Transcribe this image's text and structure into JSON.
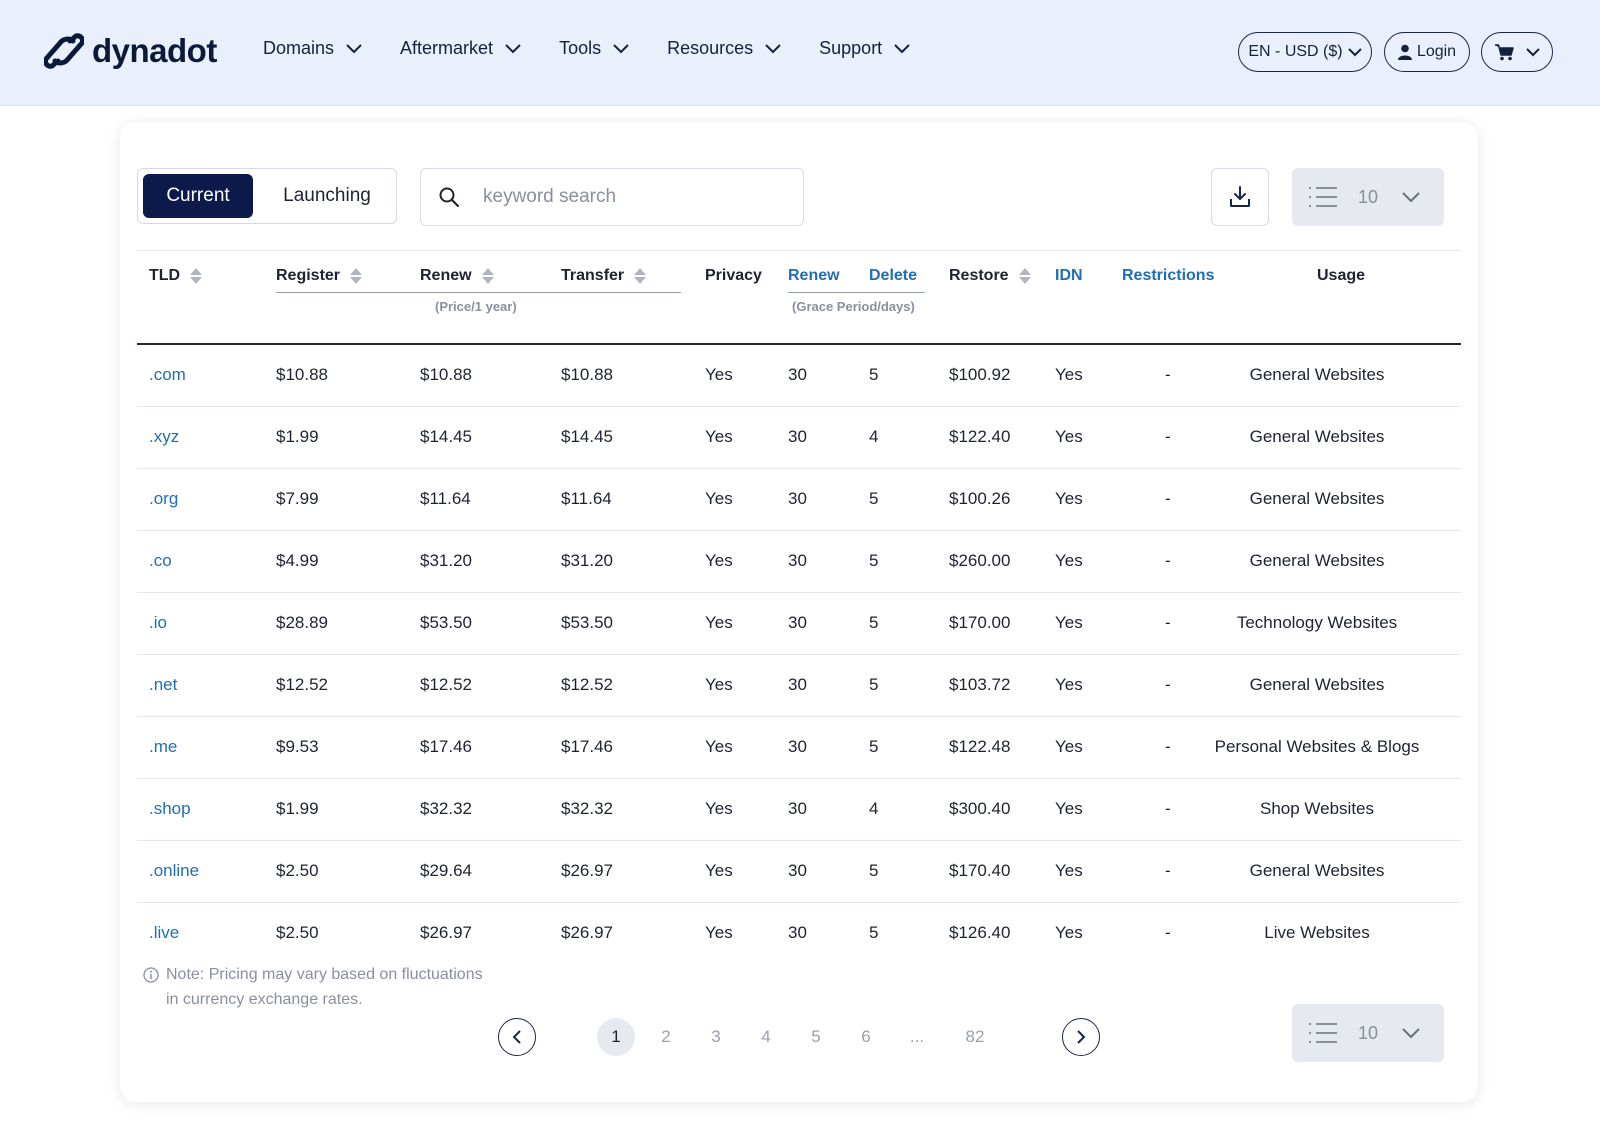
{
  "brand": {
    "name": "dynadot"
  },
  "nav": [
    {
      "label": "Domains"
    },
    {
      "label": "Aftermarket"
    },
    {
      "label": "Tools"
    },
    {
      "label": "Resources"
    },
    {
      "label": "Support"
    }
  ],
  "header_actions": {
    "language_currency": "EN - USD ($)",
    "login": "Login"
  },
  "tabs": {
    "current": "Current",
    "launching": "Launching",
    "active": "current"
  },
  "search": {
    "placeholder": "keyword search",
    "value": ""
  },
  "per_page": {
    "value": "10"
  },
  "table": {
    "columns": {
      "tld": "TLD",
      "register": "Register",
      "renew": "Renew",
      "transfer": "Transfer",
      "price_note": "(Price/1 year)",
      "privacy": "Privacy",
      "grace_renew": "Renew",
      "grace_delete": "Delete",
      "grace_note": "(Grace Period/days)",
      "restore": "Restore",
      "idn": "IDN",
      "restrictions": "Restrictions",
      "usage": "Usage"
    },
    "rows": [
      {
        "tld": ".com",
        "register": "$10.88",
        "renew": "$10.88",
        "transfer": "$10.88",
        "privacy": "Yes",
        "grace_renew": "30",
        "grace_delete": "5",
        "restore": "$100.92",
        "idn": "Yes",
        "restrictions": "-",
        "usage": "General Websites"
      },
      {
        "tld": ".xyz",
        "register": "$1.99",
        "renew": "$14.45",
        "transfer": "$14.45",
        "privacy": "Yes",
        "grace_renew": "30",
        "grace_delete": "4",
        "restore": "$122.40",
        "idn": "Yes",
        "restrictions": "-",
        "usage": "General Websites"
      },
      {
        "tld": ".org",
        "register": "$7.99",
        "renew": "$11.64",
        "transfer": "$11.64",
        "privacy": "Yes",
        "grace_renew": "30",
        "grace_delete": "5",
        "restore": "$100.26",
        "idn": "Yes",
        "restrictions": "-",
        "usage": "General Websites"
      },
      {
        "tld": ".co",
        "register": "$4.99",
        "renew": "$31.20",
        "transfer": "$31.20",
        "privacy": "Yes",
        "grace_renew": "30",
        "grace_delete": "5",
        "restore": "$260.00",
        "idn": "Yes",
        "restrictions": "-",
        "usage": "General Websites"
      },
      {
        "tld": ".io",
        "register": "$28.89",
        "renew": "$53.50",
        "transfer": "$53.50",
        "privacy": "Yes",
        "grace_renew": "30",
        "grace_delete": "5",
        "restore": "$170.00",
        "idn": "Yes",
        "restrictions": "-",
        "usage": "Technology Websites"
      },
      {
        "tld": ".net",
        "register": "$12.52",
        "renew": "$12.52",
        "transfer": "$12.52",
        "privacy": "Yes",
        "grace_renew": "30",
        "grace_delete": "5",
        "restore": "$103.72",
        "idn": "Yes",
        "restrictions": "-",
        "usage": "General Websites"
      },
      {
        "tld": ".me",
        "register": "$9.53",
        "renew": "$17.46",
        "transfer": "$17.46",
        "privacy": "Yes",
        "grace_renew": "30",
        "grace_delete": "5",
        "restore": "$122.48",
        "idn": "Yes",
        "restrictions": "-",
        "usage": "Personal Websites & Blogs"
      },
      {
        "tld": ".shop",
        "register": "$1.99",
        "renew": "$32.32",
        "transfer": "$32.32",
        "privacy": "Yes",
        "grace_renew": "30",
        "grace_delete": "4",
        "restore": "$300.40",
        "idn": "Yes",
        "restrictions": "-",
        "usage": "Shop Websites"
      },
      {
        "tld": ".online",
        "register": "$2.50",
        "renew": "$29.64",
        "transfer": "$26.97",
        "privacy": "Yes",
        "grace_renew": "30",
        "grace_delete": "5",
        "restore": "$170.40",
        "idn": "Yes",
        "restrictions": "-",
        "usage": "General Websites"
      },
      {
        "tld": ".live",
        "register": "$2.50",
        "renew": "$26.97",
        "transfer": "$26.97",
        "privacy": "Yes",
        "grace_renew": "30",
        "grace_delete": "5",
        "restore": "$126.40",
        "idn": "Yes",
        "restrictions": "-",
        "usage": "Live Websites"
      }
    ]
  },
  "note": {
    "line1": "Note: Pricing may vary based on fluctuations",
    "line2": "in currency exchange rates."
  },
  "pagination": {
    "pages": [
      "1",
      "2",
      "3",
      "4",
      "5",
      "6",
      "...",
      "82"
    ],
    "current": "1"
  },
  "colors": {
    "brand_navy": "#0b1a4a",
    "link_blue": "#1f6fb2",
    "header_bg": "#e9f0fb"
  },
  "icons": [
    "logo-icon",
    "chevron-down-icon",
    "user-icon",
    "cart-icon",
    "search-icon",
    "download-icon",
    "list-icon",
    "sort-icon",
    "info-icon",
    "chevron-left-icon",
    "chevron-right-icon"
  ]
}
